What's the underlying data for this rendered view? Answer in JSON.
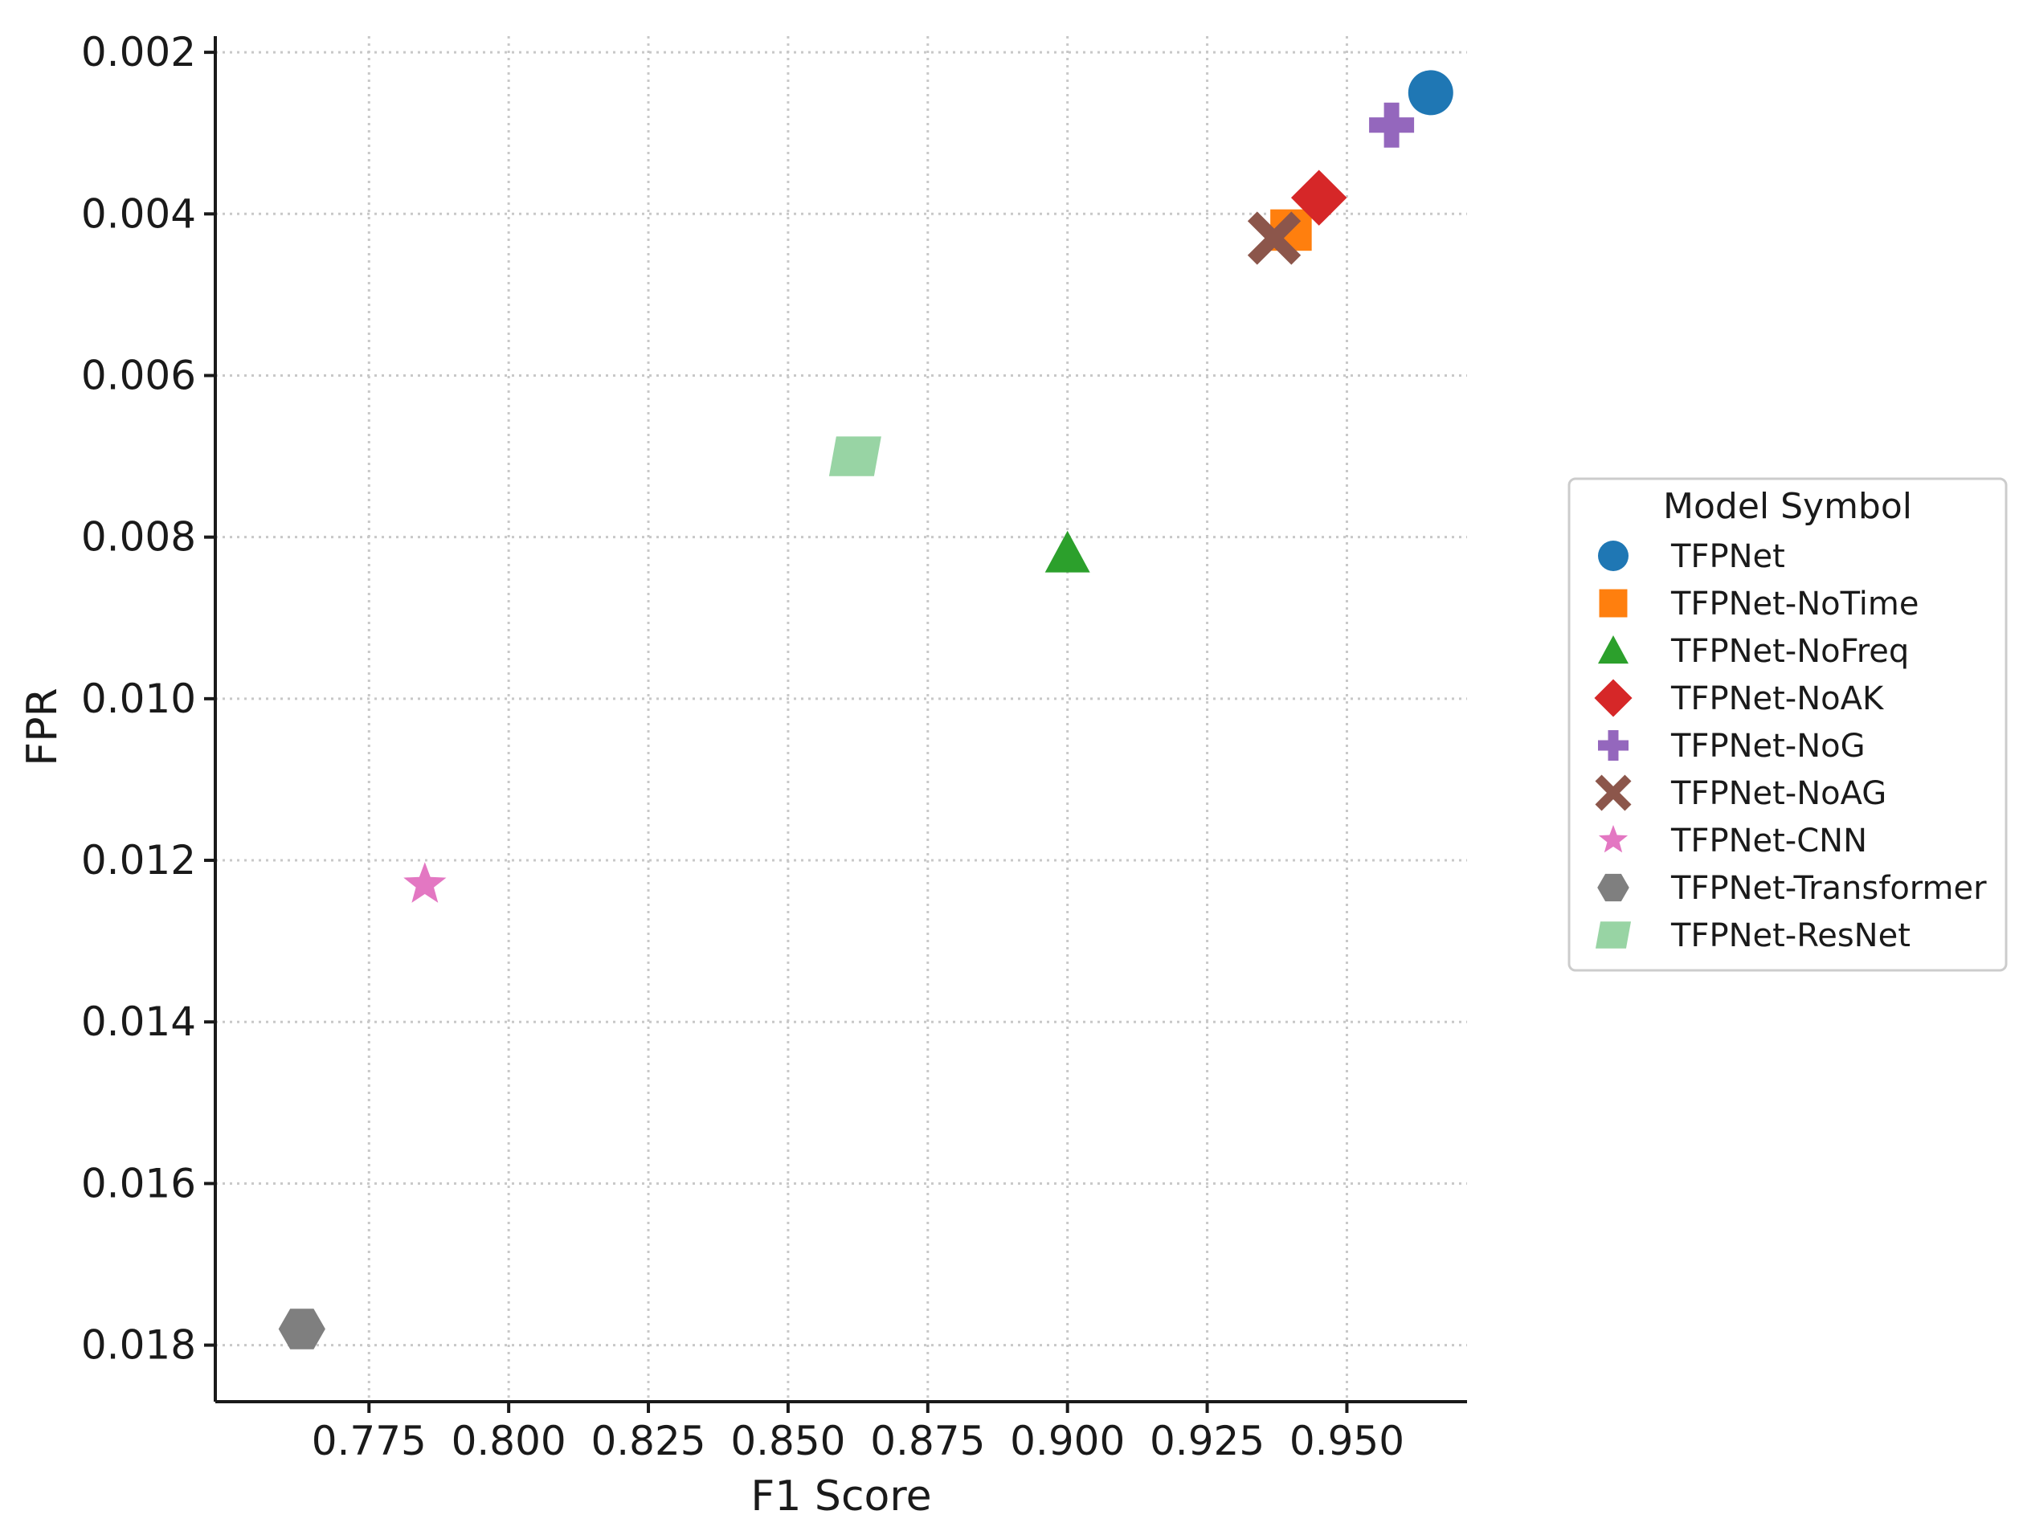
{
  "chart_data": {
    "type": "scatter",
    "xlabel": "F1 Score",
    "ylabel": "FPR",
    "xlim": [
      0.7475,
      0.9715
    ],
    "ylim": [
      0.0018,
      0.0187
    ],
    "y_inverted": true,
    "grid": true,
    "x_ticks": [
      0.775,
      0.8,
      0.825,
      0.85,
      0.875,
      0.9,
      0.925,
      0.95
    ],
    "x_tick_labels": [
      "0.775",
      "0.800",
      "0.825",
      "0.850",
      "0.875",
      "0.900",
      "0.925",
      "0.950"
    ],
    "y_ticks": [
      0.002,
      0.004,
      0.006,
      0.008,
      0.01,
      0.012,
      0.014,
      0.016,
      0.018
    ],
    "y_tick_labels": [
      "0.002",
      "0.004",
      "0.006",
      "0.008",
      "0.010",
      "0.012",
      "0.014",
      "0.016",
      "0.018"
    ],
    "legend": {
      "title": "Model Symbol",
      "placement": "right"
    },
    "series": [
      {
        "name": "TFPNet",
        "x": 0.965,
        "y": 0.0025,
        "color": "#1f77b4",
        "marker": "circle"
      },
      {
        "name": "TFPNet-NoTime",
        "x": 0.94,
        "y": 0.0042,
        "color": "#ff7f0e",
        "marker": "square"
      },
      {
        "name": "TFPNet-NoFreq",
        "x": 0.9,
        "y": 0.0082,
        "color": "#2ca02c",
        "marker": "triangle"
      },
      {
        "name": "TFPNet-NoAK",
        "x": 0.945,
        "y": 0.0038,
        "color": "#d62728",
        "marker": "diamond"
      },
      {
        "name": "TFPNet-NoG",
        "x": 0.958,
        "y": 0.0029,
        "color": "#9467bd",
        "marker": "plus"
      },
      {
        "name": "TFPNet-NoAG",
        "x": 0.937,
        "y": 0.0043,
        "color": "#8c564b",
        "marker": "x"
      },
      {
        "name": "TFPNet-CNN",
        "x": 0.785,
        "y": 0.0123,
        "color": "#e377c2",
        "marker": "star"
      },
      {
        "name": "TFPNet-Transformer",
        "x": 0.763,
        "y": 0.0178,
        "color": "#7f7f7f",
        "marker": "hexagon"
      },
      {
        "name": "TFPNet-ResNet",
        "x": 0.862,
        "y": 0.007,
        "color": "#98d4a4",
        "marker": "parallelogram"
      }
    ]
  }
}
